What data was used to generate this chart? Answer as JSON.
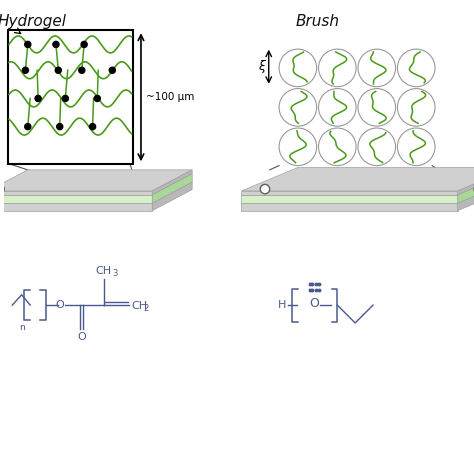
{
  "bg_color": "#ffffff",
  "green_fill": "#c8e6b8",
  "green_chain": "#4a9a1a",
  "gray_dark": "#a0a0a0",
  "gray_light": "#d0d0d0",
  "gray_mid": "#b8b8b8",
  "blue_chem": "#4a5a8a",
  "black": "#111111",
  "title_hydrogel": "Hydrogel",
  "title_brush": "Brush",
  "label_100um": "~100 μm",
  "label_xi": "ξ",
  "figsize": [
    4.74,
    4.74
  ],
  "dpi": 100
}
